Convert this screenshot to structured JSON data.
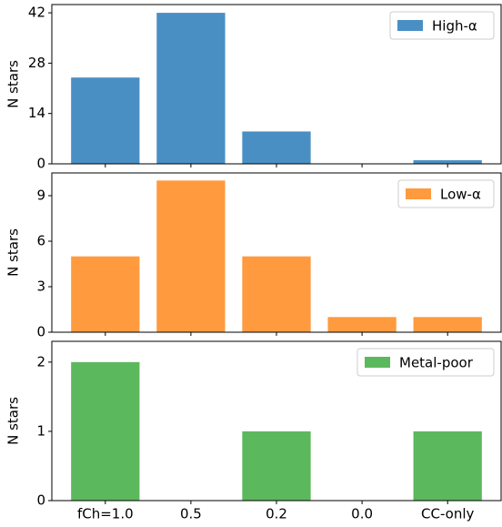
{
  "chart_data": [
    {
      "type": "bar",
      "ylabel": "N stars",
      "legend": "upper right",
      "series": [
        {
          "name": "High-α",
          "color": "#4a8fc4",
          "values": [
            24,
            42,
            9,
            0,
            1
          ]
        }
      ],
      "ylim": [
        0,
        44.3
      ],
      "yticks": [
        0,
        14,
        28,
        42
      ]
    },
    {
      "type": "bar",
      "ylabel": "N stars",
      "legend": "upper right",
      "series": [
        {
          "name": "Low-α",
          "color": "#ff9a3f",
          "values": [
            5,
            10,
            5,
            1,
            1
          ]
        }
      ],
      "ylim": [
        0,
        10.5
      ],
      "yticks": [
        0,
        3,
        6,
        9
      ]
    },
    {
      "type": "bar",
      "ylabel": "N stars",
      "legend": "upper right",
      "categories": [
        "fCh=1.0",
        "0.5",
        "0.2",
        "0.0",
        "CC-only"
      ],
      "series": [
        {
          "name": "Metal-poor",
          "color": "#5cb85c",
          "values": [
            2,
            0,
            1,
            0,
            1
          ]
        }
      ],
      "ylim": [
        0,
        2.3
      ],
      "yticks": [
        0,
        1,
        2
      ]
    }
  ]
}
